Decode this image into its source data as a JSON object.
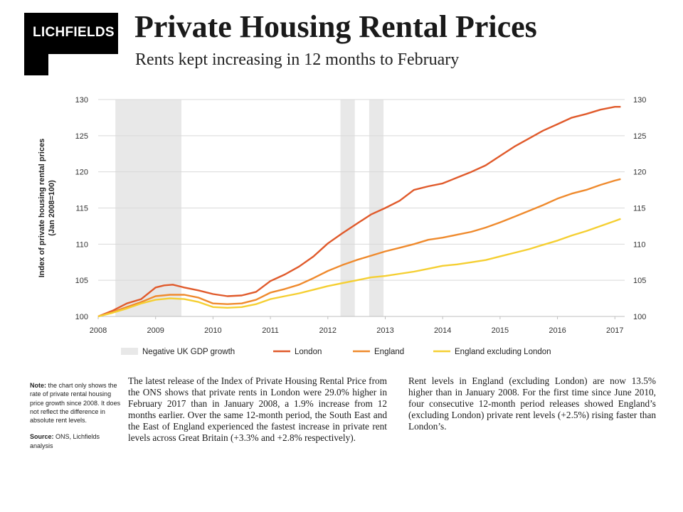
{
  "header": {
    "logo_text": "LICHFIELDS",
    "title": "Private Housing Rental Prices",
    "subtitle": "Rents kept increasing in 12 months to February"
  },
  "chart_data": {
    "type": "line",
    "ylabel_line1": "Index of private housing rental prices",
    "ylabel_line2": "(Jan 2008=100)",
    "xlabel": "",
    "xlim": [
      2008,
      2017.17
    ],
    "ylim": [
      100,
      130
    ],
    "x_ticks": [
      "2008",
      "2009",
      "2010",
      "2011",
      "2012",
      "2013",
      "2014",
      "2015",
      "2016",
      "2017"
    ],
    "y_ticks": [
      "100",
      "105",
      "110",
      "115",
      "120",
      "125",
      "130"
    ],
    "grid": "horizontal",
    "shaded_periods": [
      {
        "label": "Negative UK GDP growth",
        "start": 2008.3,
        "end": 2009.45
      },
      {
        "label": "Negative UK GDP growth",
        "start": 2012.22,
        "end": 2012.47
      },
      {
        "label": "Negative UK GDP growth",
        "start": 2012.72,
        "end": 2012.97
      }
    ],
    "series": [
      {
        "name": "London",
        "color": "#e05a2b",
        "points": [
          [
            2008.0,
            100.0
          ],
          [
            2008.25,
            100.8
          ],
          [
            2008.5,
            101.8
          ],
          [
            2008.75,
            102.4
          ],
          [
            2009.0,
            104.0
          ],
          [
            2009.15,
            104.3
          ],
          [
            2009.3,
            104.4
          ],
          [
            2009.5,
            104.0
          ],
          [
            2009.75,
            103.6
          ],
          [
            2010.0,
            103.1
          ],
          [
            2010.25,
            102.8
          ],
          [
            2010.5,
            102.9
          ],
          [
            2010.75,
            103.4
          ],
          [
            2011.0,
            104.9
          ],
          [
            2011.25,
            105.8
          ],
          [
            2011.5,
            106.9
          ],
          [
            2011.75,
            108.3
          ],
          [
            2012.0,
            110.1
          ],
          [
            2012.25,
            111.5
          ],
          [
            2012.5,
            112.8
          ],
          [
            2012.75,
            114.1
          ],
          [
            2013.0,
            115.0
          ],
          [
            2013.25,
            116.0
          ],
          [
            2013.5,
            117.5
          ],
          [
            2013.75,
            118.0
          ],
          [
            2014.0,
            118.4
          ],
          [
            2014.25,
            119.2
          ],
          [
            2014.5,
            120.0
          ],
          [
            2014.75,
            120.9
          ],
          [
            2015.0,
            122.2
          ],
          [
            2015.25,
            123.5
          ],
          [
            2015.5,
            124.6
          ],
          [
            2015.75,
            125.7
          ],
          [
            2016.0,
            126.6
          ],
          [
            2016.25,
            127.5
          ],
          [
            2016.5,
            128.0
          ],
          [
            2016.75,
            128.6
          ],
          [
            2017.0,
            129.0
          ],
          [
            2017.1,
            129.0
          ]
        ]
      },
      {
        "name": "England",
        "color": "#ef8a2d",
        "points": [
          [
            2008.0,
            100.0
          ],
          [
            2008.25,
            100.6
          ],
          [
            2008.5,
            101.3
          ],
          [
            2008.75,
            102.0
          ],
          [
            2009.0,
            102.8
          ],
          [
            2009.25,
            103.0
          ],
          [
            2009.5,
            103.0
          ],
          [
            2009.75,
            102.6
          ],
          [
            2010.0,
            101.8
          ],
          [
            2010.25,
            101.7
          ],
          [
            2010.5,
            101.8
          ],
          [
            2010.75,
            102.3
          ],
          [
            2011.0,
            103.3
          ],
          [
            2011.25,
            103.8
          ],
          [
            2011.5,
            104.4
          ],
          [
            2011.75,
            105.3
          ],
          [
            2012.0,
            106.3
          ],
          [
            2012.25,
            107.1
          ],
          [
            2012.5,
            107.8
          ],
          [
            2012.75,
            108.4
          ],
          [
            2013.0,
            109.0
          ],
          [
            2013.25,
            109.5
          ],
          [
            2013.5,
            110.0
          ],
          [
            2013.75,
            110.6
          ],
          [
            2014.0,
            110.9
          ],
          [
            2014.25,
            111.3
          ],
          [
            2014.5,
            111.7
          ],
          [
            2014.75,
            112.3
          ],
          [
            2015.0,
            113.0
          ],
          [
            2015.25,
            113.8
          ],
          [
            2015.5,
            114.6
          ],
          [
            2015.75,
            115.4
          ],
          [
            2016.0,
            116.3
          ],
          [
            2016.25,
            117.0
          ],
          [
            2016.5,
            117.5
          ],
          [
            2016.75,
            118.2
          ],
          [
            2017.0,
            118.8
          ],
          [
            2017.1,
            119.0
          ]
        ]
      },
      {
        "name": "England excluding London",
        "color": "#f5cf32",
        "points": [
          [
            2008.0,
            100.0
          ],
          [
            2008.25,
            100.5
          ],
          [
            2008.5,
            101.1
          ],
          [
            2008.75,
            101.8
          ],
          [
            2009.0,
            102.3
          ],
          [
            2009.25,
            102.5
          ],
          [
            2009.5,
            102.4
          ],
          [
            2009.75,
            102.0
          ],
          [
            2010.0,
            101.3
          ],
          [
            2010.25,
            101.2
          ],
          [
            2010.5,
            101.3
          ],
          [
            2010.75,
            101.7
          ],
          [
            2011.0,
            102.4
          ],
          [
            2011.25,
            102.8
          ],
          [
            2011.5,
            103.2
          ],
          [
            2011.75,
            103.7
          ],
          [
            2012.0,
            104.2
          ],
          [
            2012.25,
            104.6
          ],
          [
            2012.5,
            105.0
          ],
          [
            2012.75,
            105.4
          ],
          [
            2013.0,
            105.6
          ],
          [
            2013.25,
            105.9
          ],
          [
            2013.5,
            106.2
          ],
          [
            2013.75,
            106.6
          ],
          [
            2014.0,
            107.0
          ],
          [
            2014.25,
            107.2
          ],
          [
            2014.5,
            107.5
          ],
          [
            2014.75,
            107.8
          ],
          [
            2015.0,
            108.3
          ],
          [
            2015.25,
            108.8
          ],
          [
            2015.5,
            109.3
          ],
          [
            2015.75,
            109.9
          ],
          [
            2016.0,
            110.5
          ],
          [
            2016.25,
            111.2
          ],
          [
            2016.5,
            111.8
          ],
          [
            2016.75,
            112.5
          ],
          [
            2017.0,
            113.2
          ],
          [
            2017.1,
            113.5
          ]
        ]
      }
    ],
    "legend": {
      "position": "bottom",
      "items": [
        {
          "label": "Negative UK GDP growth",
          "kind": "area",
          "color": "#e8e8e8"
        },
        {
          "label": "London",
          "kind": "line",
          "color": "#e05a2b"
        },
        {
          "label": "England",
          "kind": "line",
          "color": "#ef8a2d"
        },
        {
          "label": "England excluding London",
          "kind": "line",
          "color": "#f5cf32"
        }
      ]
    }
  },
  "note": {
    "note_label": "Note:",
    "note_text": " the chart only shows the rate of private rental housing price growth since 2008. It does not reflect the difference in absolute rent levels.",
    "source_label": "Source:",
    "source_text": " ONS, Lichfields analysis"
  },
  "body": {
    "col1": "The latest release of the Index of Private Housing Rental Price from the ONS shows that private rents in London were 29.0% higher in February 2017 than in January 2008, a 1.9% increase from 12 months earlier. Over the same 12-month period, the South East and the East of England experienced the fastest increase in private rent levels across Great Britain (+3.3% and +2.8% respectively).",
    "col2": "Rent levels in England (excluding London) are now 13.5% higher than in January 2008. For the first time since June 2010, four consecutive 12-month period releases showed England’s (excluding London) private rent levels (+2.5%) rising faster than London’s."
  }
}
